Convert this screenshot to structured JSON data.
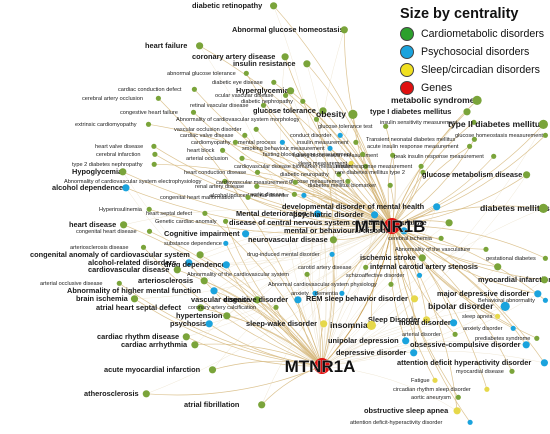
{
  "legend": {
    "title": "Size by centrality",
    "items": [
      {
        "label": "Cardiometabolic disorders",
        "color": "#2ca02c"
      },
      {
        "label": "Psychosocial disorders",
        "color": "#1aa3dd"
      },
      {
        "label": "Sleep/circadian disorders",
        "color": "#f0e020"
      },
      {
        "label": "Genes",
        "color": "#e01010"
      }
    ]
  },
  "hubs": [
    {
      "id": "b",
      "label": "MTNR1B",
      "color": "#e01010"
    },
    {
      "id": "a",
      "label": "MTNR1A",
      "color": "#e01010"
    }
  ],
  "nodes": [
    {
      "label": "diabetic retinopathy",
      "cat": "c",
      "size": 2,
      "link": "b"
    },
    {
      "label": "Abnormal glucose homeostasis",
      "cat": "c",
      "size": 2,
      "link": "b"
    },
    {
      "label": "heart failure",
      "cat": "c",
      "size": 2,
      "link": "b"
    },
    {
      "label": "coronary artery disease",
      "cat": "c",
      "size": 2,
      "link": "b"
    },
    {
      "label": "insulin resistance",
      "cat": "c",
      "size": 2,
      "link": "b"
    },
    {
      "label": "abnormal glucose tolerance",
      "cat": "c",
      "size": 1,
      "link": "b"
    },
    {
      "label": "diabetic eye disease",
      "cat": "c",
      "size": 1,
      "link": "b"
    },
    {
      "label": "cardiac conduction defect",
      "cat": "c",
      "size": 1,
      "link": "b"
    },
    {
      "label": "Hyperglycemia",
      "cat": "c",
      "size": 2,
      "link": "b"
    },
    {
      "label": "ocular vascular disease",
      "cat": "c",
      "size": 1,
      "link": "b"
    },
    {
      "label": "cerebral artery occlusion",
      "cat": "c",
      "size": 1,
      "link": "a"
    },
    {
      "label": "retinal vascular disease",
      "cat": "c",
      "size": 1,
      "link": "b"
    },
    {
      "label": "diabetic nephropathy",
      "cat": "c",
      "size": 1,
      "link": "b"
    },
    {
      "label": "congestive heart failure",
      "cat": "c",
      "size": 1,
      "link": "b"
    },
    {
      "label": "glucose tolerance",
      "cat": "c",
      "size": 2,
      "link": "b"
    },
    {
      "label": "obesity",
      "cat": "c",
      "size": 3,
      "link": "b"
    },
    {
      "label": "Abnormality of cardiovascular system morphology",
      "cat": "c",
      "size": 1,
      "link": "a"
    },
    {
      "label": "metabolic syndrome",
      "cat": "c",
      "size": 3,
      "link": "b"
    },
    {
      "label": "extrinsic cardiomyopathy",
      "cat": "c",
      "size": 1,
      "link": "b"
    },
    {
      "label": "vascular occlusion disorder",
      "cat": "c",
      "size": 1,
      "link": "b"
    },
    {
      "label": "glucose tolerance test",
      "cat": "c",
      "size": 1,
      "link": "b"
    },
    {
      "label": "cardiac valve disease",
      "cat": "c",
      "size": 1,
      "link": "b"
    },
    {
      "label": "conduct disorder",
      "cat": "p",
      "size": 1,
      "link": "b"
    },
    {
      "label": "type I diabetes mellitus",
      "cat": "c",
      "size": 2,
      "link": "b"
    },
    {
      "label": "cardiomyopathy",
      "cat": "c",
      "size": 1,
      "link": "b"
    },
    {
      "label": "mental process",
      "cat": "p",
      "size": 1,
      "link": "b"
    },
    {
      "label": "insulin measurement",
      "cat": "c",
      "size": 1,
      "link": "b"
    },
    {
      "label": "insulin sensitivity measurement",
      "cat": "c",
      "size": 1,
      "link": "b"
    },
    {
      "label": "type II diabetes mellitus",
      "cat": "c",
      "size": 3,
      "link": "b"
    },
    {
      "label": "heart block",
      "cat": "c",
      "size": 1,
      "link": "b"
    },
    {
      "label": "smoking behaviour measurement",
      "cat": "p",
      "size": 1,
      "link": "b"
    },
    {
      "label": "fasting blood insulin measurement",
      "cat": "c",
      "size": 1,
      "link": "b"
    },
    {
      "label": "glucose homeostasis measurement",
      "cat": "c",
      "size": 1,
      "link": "b"
    },
    {
      "label": "heart valve disease",
      "cat": "c",
      "size": 1,
      "link": "b"
    },
    {
      "label": "arterial occlusion",
      "cat": "c",
      "size": 1,
      "link": "b"
    },
    {
      "label": "fasting blood glucose measurement",
      "cat": "c",
      "size": 1,
      "link": "b"
    },
    {
      "label": "Transient neonatal diabetes mellitus",
      "cat": "c",
      "size": 1,
      "link": "b"
    },
    {
      "label": "cerebral infarction",
      "cat": "c",
      "size": 1,
      "link": "b"
    },
    {
      "label": "sleep measurement",
      "cat": "s",
      "size": 1,
      "link": "b"
    },
    {
      "label": "acute insulin response measurement",
      "cat": "c",
      "size": 1,
      "link": "b"
    },
    {
      "label": "type 2 diabetes nephropathy",
      "cat": "c",
      "size": 1,
      "link": "b"
    },
    {
      "label": "cardiovascular disease biomarker measurement",
      "cat": "c",
      "size": 1,
      "link": "b"
    },
    {
      "label": "peak insulin response measurement",
      "cat": "c",
      "size": 1,
      "link": "b"
    },
    {
      "label": "Hypoglycemia",
      "cat": "c",
      "size": 2,
      "link": "b"
    },
    {
      "label": "heart conduction disease",
      "cat": "c",
      "size": 1,
      "link": "b"
    },
    {
      "label": "diabetic neuropathy",
      "cat": "c",
      "size": 1,
      "link": "b"
    },
    {
      "label": "Abnormality of cardiovascular system electrophysiology",
      "cat": "c",
      "size": 1,
      "link": "b"
    },
    {
      "label": "glucose measurement",
      "cat": "c",
      "size": 1,
      "link": "b"
    },
    {
      "label": "insulin response measurement",
      "cat": "c",
      "size": 1,
      "link": "b"
    },
    {
      "label": "alcohol dependence",
      "cat": "p",
      "size": 2,
      "link": "b"
    },
    {
      "label": "renal artery disease",
      "cat": "c",
      "size": 1,
      "link": "b"
    },
    {
      "label": "cardiovascular measurement",
      "cat": "c",
      "size": 1,
      "link": "b"
    },
    {
      "label": "rare diabetes mellitus type 2",
      "cat": "c",
      "size": 1,
      "link": "b"
    },
    {
      "label": "alcohol induced mental disorder",
      "cat": "p",
      "size": 1,
      "link": "b"
    },
    {
      "label": "diabetes mellitus biomarker",
      "cat": "c",
      "size": 1,
      "link": "b"
    },
    {
      "label": "congenital heart malformation",
      "cat": "c",
      "size": 1,
      "link": "b"
    },
    {
      "label": "aortic disease",
      "cat": "c",
      "size": 1,
      "link": "b"
    },
    {
      "label": "gestational diabetes",
      "cat": "c",
      "size": 1,
      "link": "b"
    },
    {
      "label": "glucose metabolism disease",
      "cat": "c",
      "size": 2,
      "link": "b"
    },
    {
      "label": "Hyperinsulinemia",
      "cat": "c",
      "size": 1,
      "link": "b"
    },
    {
      "label": "developmental disorder of mental health",
      "cat": "p",
      "size": 2,
      "link": "b"
    },
    {
      "label": "diabetes mellitus",
      "cat": "c",
      "size": 3,
      "link": "b"
    },
    {
      "label": "heart septal defect",
      "cat": "c",
      "size": 1,
      "link": "a"
    },
    {
      "label": "Mental deterioration",
      "cat": "p",
      "size": 2,
      "link": "b"
    },
    {
      "label": "psychiatric disorder",
      "cat": "p",
      "size": 2,
      "link": "b"
    },
    {
      "label": "Genetic cardiac anomaly",
      "cat": "c",
      "size": 1,
      "link": "a"
    },
    {
      "label": "heart disease",
      "cat": "c",
      "size": 2,
      "link": "a"
    },
    {
      "label": "disease of central nervous system or retinal vasculature",
      "cat": "c",
      "size": 2,
      "link": "b"
    },
    {
      "label": "congenital heart disease",
      "cat": "c",
      "size": 1,
      "link": "a"
    },
    {
      "label": "mental or behavioural disorder",
      "cat": "p",
      "size": 2,
      "link": "b"
    },
    {
      "label": "Cognitive impairment",
      "cat": "p",
      "size": 2,
      "link": "a"
    },
    {
      "label": "neurovascular disease",
      "cat": "c",
      "size": 2,
      "link": "b"
    },
    {
      "label": "cerebral ischemia",
      "cat": "c",
      "size": 1,
      "link": "b"
    },
    {
      "label": "substance dependence",
      "cat": "p",
      "size": 1,
      "link": "a"
    },
    {
      "label": "Abnormality of the vasculature",
      "cat": "c",
      "size": 1,
      "link": "b"
    },
    {
      "label": "arteriosclerosis disease",
      "cat": "c",
      "size": 1,
      "link": "a"
    },
    {
      "label": "congenital anomaly of cardiovascular system",
      "cat": "c",
      "size": 2,
      "link": "a"
    },
    {
      "label": "ischemic stroke",
      "cat": "c",
      "size": 2,
      "link": "b"
    },
    {
      "label": "drug-induced mental disorder",
      "cat": "p",
      "size": 1,
      "link": "a"
    },
    {
      "label": "alcohol-related disorders",
      "cat": "p",
      "size": 2,
      "link": "a"
    },
    {
      "label": "internal carotid artery stenosis",
      "cat": "c",
      "size": 2,
      "link": "b"
    },
    {
      "label": "drug dependence",
      "cat": "p",
      "size": 2,
      "link": "a"
    },
    {
      "label": "cardiovascular disease",
      "cat": "c",
      "size": 2,
      "link": "a"
    },
    {
      "label": "carotid artery disease",
      "cat": "c",
      "size": 1,
      "link": "b"
    },
    {
      "label": "Abnormality of the cardiovascular system",
      "cat": "c",
      "size": 1,
      "link": "a"
    },
    {
      "label": "schizoaffective disorder",
      "cat": "p",
      "size": 1,
      "link": "b"
    },
    {
      "label": "myocardial infarction",
      "cat": "c",
      "size": 2,
      "link": "b"
    },
    {
      "label": "arterial occlusive disease",
      "cat": "c",
      "size": 1,
      "link": "a"
    },
    {
      "label": "arteriosclerosis",
      "cat": "c",
      "size": 2,
      "link": "a"
    },
    {
      "label": "Abnormal cardiovascular system physiology",
      "cat": "c",
      "size": 1,
      "link": "b"
    },
    {
      "label": "major depressive disorder",
      "cat": "p",
      "size": 2,
      "link": "b"
    },
    {
      "label": "Behavioral abnormality",
      "cat": "p",
      "size": 1,
      "link": "b"
    },
    {
      "label": "Abnormality of higher mental function",
      "cat": "p",
      "size": 2,
      "link": "a"
    },
    {
      "label": "anxiety",
      "cat": "p",
      "size": 1,
      "link": "b"
    },
    {
      "label": "dementia",
      "cat": "p",
      "size": 1,
      "link": "b"
    },
    {
      "label": "brain ischemia",
      "cat": "c",
      "size": 2,
      "link": "a"
    },
    {
      "label": "REM sleep behavior disorder",
      "cat": "s",
      "size": 2,
      "link": "b"
    },
    {
      "label": "bipolar disorder",
      "cat": "p",
      "size": 3,
      "link": "b"
    },
    {
      "label": "vascular disease",
      "cat": "c",
      "size": 2,
      "link": "a"
    },
    {
      "label": "cognitive disorder",
      "cat": "p",
      "size": 2,
      "link": "a"
    },
    {
      "label": "atrial heart septal defect",
      "cat": "c",
      "size": 2,
      "link": "a"
    },
    {
      "label": "coronary artery calcification",
      "cat": "c",
      "size": 1,
      "link": "a"
    },
    {
      "label": "sleep apnea",
      "cat": "s",
      "size": 1,
      "link": "b"
    },
    {
      "label": "Sleep Disorder",
      "cat": "s",
      "size": 2,
      "link": "b"
    },
    {
      "label": "hypertension",
      "cat": "c",
      "size": 2,
      "link": "a"
    },
    {
      "label": "mood disorder",
      "cat": "p",
      "size": 2,
      "link": "b"
    },
    {
      "label": "anxiety disorder",
      "cat": "p",
      "size": 1,
      "link": "b"
    },
    {
      "label": "psychosis",
      "cat": "p",
      "size": 2,
      "link": "a"
    },
    {
      "label": "insomnia",
      "cat": "s",
      "size": 3,
      "link": "b"
    },
    {
      "label": "sleep-wake disorder",
      "cat": "s",
      "size": 2,
      "link": "a"
    },
    {
      "label": "prediabetes syndrome",
      "cat": "c",
      "size": 1,
      "link": "b"
    },
    {
      "label": "cardiac rhythm disease",
      "cat": "c",
      "size": 2,
      "link": "a"
    },
    {
      "label": "arterial disorder",
      "cat": "c",
      "size": 1,
      "link": "b"
    },
    {
      "label": "obsessive-compulsive disorder",
      "cat": "p",
      "size": 2,
      "link": "b"
    },
    {
      "label": "unipolar depression",
      "cat": "p",
      "size": 2,
      "link": "b"
    },
    {
      "label": "depressive disorder",
      "cat": "p",
      "size": 2,
      "link": "b"
    },
    {
      "label": "cardiac arrhythmia",
      "cat": "c",
      "size": 2,
      "link": "a"
    },
    {
      "label": "attention deficit hyperactivity disorder",
      "cat": "p",
      "size": 2,
      "link": "b"
    },
    {
      "label": "acute myocardial infarction",
      "cat": "c",
      "size": 2,
      "link": "a"
    },
    {
      "label": "myocardial disease",
      "cat": "c",
      "size": 1,
      "link": "b"
    },
    {
      "label": "Fatigue",
      "cat": "s",
      "size": 1,
      "link": "b"
    },
    {
      "label": "circadian rhythm sleep disorder",
      "cat": "s",
      "size": 1,
      "link": "b"
    },
    {
      "label": "aortic aneurysm",
      "cat": "c",
      "size": 1,
      "link": "b"
    },
    {
      "label": "atherosclerosis",
      "cat": "c",
      "size": 2,
      "link": "a"
    },
    {
      "label": "atrial fibrillation",
      "cat": "c",
      "size": 2,
      "link": "a"
    },
    {
      "label": "obstructive sleep apnea",
      "cat": "s",
      "size": 2,
      "link": "b"
    },
    {
      "label": "attention deficit-hyperactivity disorder",
      "cat": "p",
      "size": 1,
      "link": "b"
    }
  ]
}
